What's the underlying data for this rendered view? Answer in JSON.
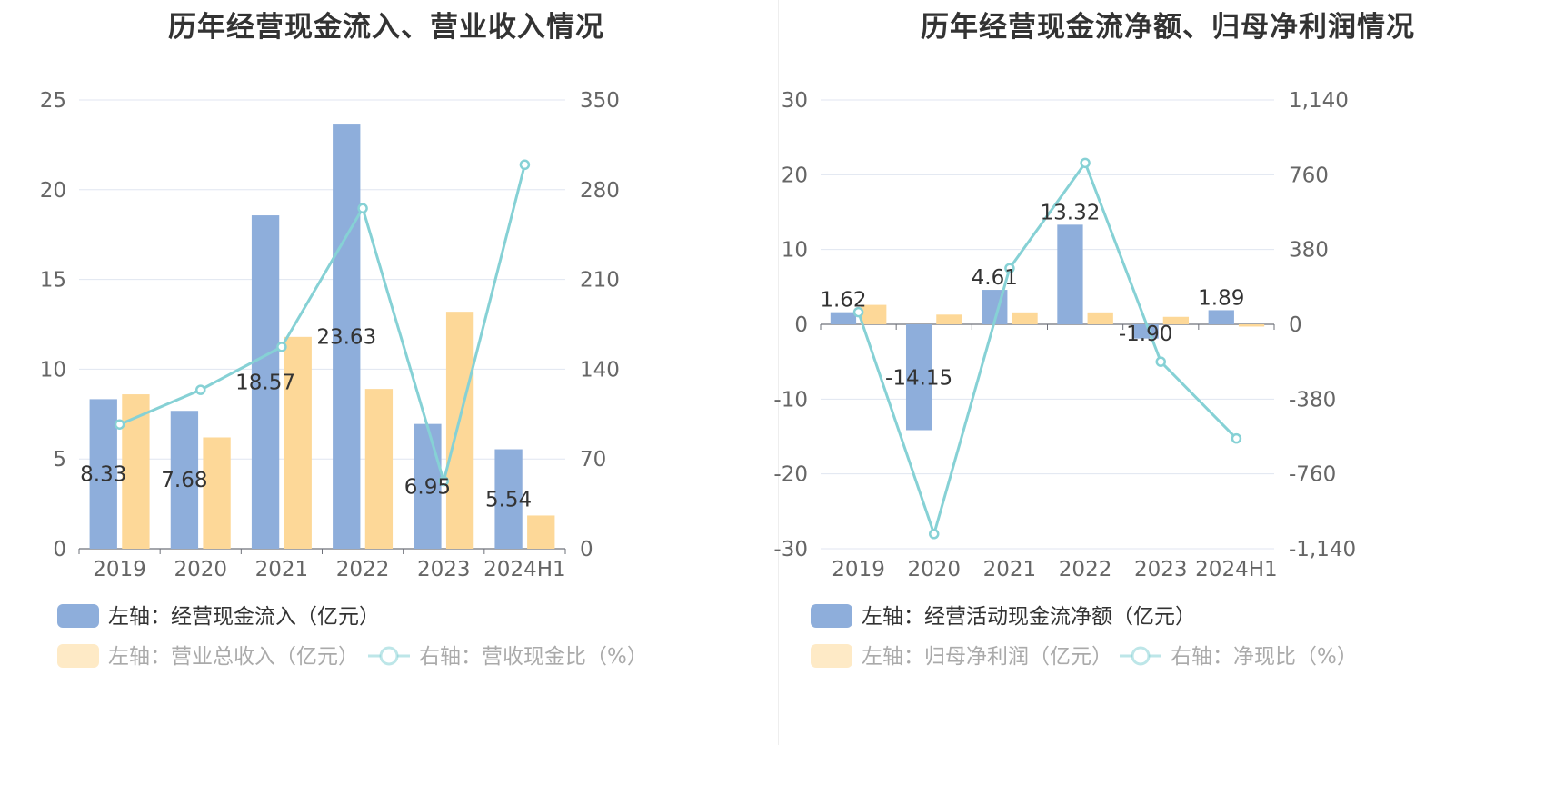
{
  "chart_data": [
    {
      "type": "bar",
      "title": "历年经营现金流入、营业收入情况",
      "categories": [
        "2019",
        "2020",
        "2021",
        "2022",
        "2023",
        "2024H1"
      ],
      "left_axis": {
        "ticks": [
          "0",
          "5",
          "10",
          "15",
          "20",
          "25"
        ],
        "ylim": [
          0,
          25
        ]
      },
      "right_axis": {
        "ticks": [
          "0",
          "70",
          "140",
          "210",
          "280",
          "350"
        ],
        "ylim": [
          0,
          350
        ]
      },
      "series": [
        {
          "name": "左轴：经营现金流入（亿元）",
          "type": "bar",
          "axis": "left",
          "color": "#8eaedb",
          "values": [
            8.33,
            7.68,
            18.57,
            23.63,
            6.95,
            5.54
          ],
          "labels": [
            "8.33",
            "7.68",
            "18.57",
            "23.63",
            "6.95",
            "5.54"
          ]
        },
        {
          "name": "左轴：营业总收入（亿元）",
          "type": "bar",
          "axis": "left",
          "color": "#fdd898",
          "values": [
            8.6,
            6.2,
            11.8,
            8.9,
            13.2,
            1.85
          ]
        },
        {
          "name": "右轴：营收现金比（%）",
          "type": "line",
          "axis": "right",
          "color": "#86d1d5",
          "values": [
            96.9,
            123.9,
            157.4,
            265.5,
            52.7,
            299.5
          ]
        }
      ],
      "grid": true,
      "legend_position": "bottom"
    },
    {
      "type": "bar",
      "title": "历年经营现金流净额、归母净利润情况",
      "categories": [
        "2019",
        "2020",
        "2021",
        "2022",
        "2023",
        "2024H1"
      ],
      "left_axis": {
        "ticks": [
          "-30",
          "-20",
          "-10",
          "0",
          "10",
          "20",
          "30"
        ],
        "ylim": [
          -30,
          30
        ]
      },
      "right_axis": {
        "ticks": [
          "-1,140",
          "-760",
          "-380",
          "0",
          "380",
          "760",
          "1,140"
        ],
        "ylim": [
          -1140,
          1140
        ]
      },
      "series": [
        {
          "name": "左轴：经营活动现金流净额（亿元）",
          "type": "bar",
          "axis": "left",
          "color": "#8eaedb",
          "values": [
            1.62,
            -14.15,
            4.61,
            13.32,
            -1.9,
            1.89
          ],
          "labels": [
            "1.62",
            "-14.15",
            "4.61",
            "13.32",
            "-1.90",
            "1.89"
          ]
        },
        {
          "name": "左轴：归母净利润（亿元）",
          "type": "bar",
          "axis": "left",
          "color": "#fdd898",
          "values": [
            2.6,
            1.3,
            1.6,
            1.6,
            1.0,
            -0.3
          ]
        },
        {
          "name": "右轴：净现比（%）",
          "type": "line",
          "axis": "right",
          "color": "#86d1d5",
          "values": [
            62,
            -1065,
            285,
            820,
            -190,
            -580
          ]
        }
      ],
      "grid": true,
      "legend_position": "bottom"
    }
  ]
}
